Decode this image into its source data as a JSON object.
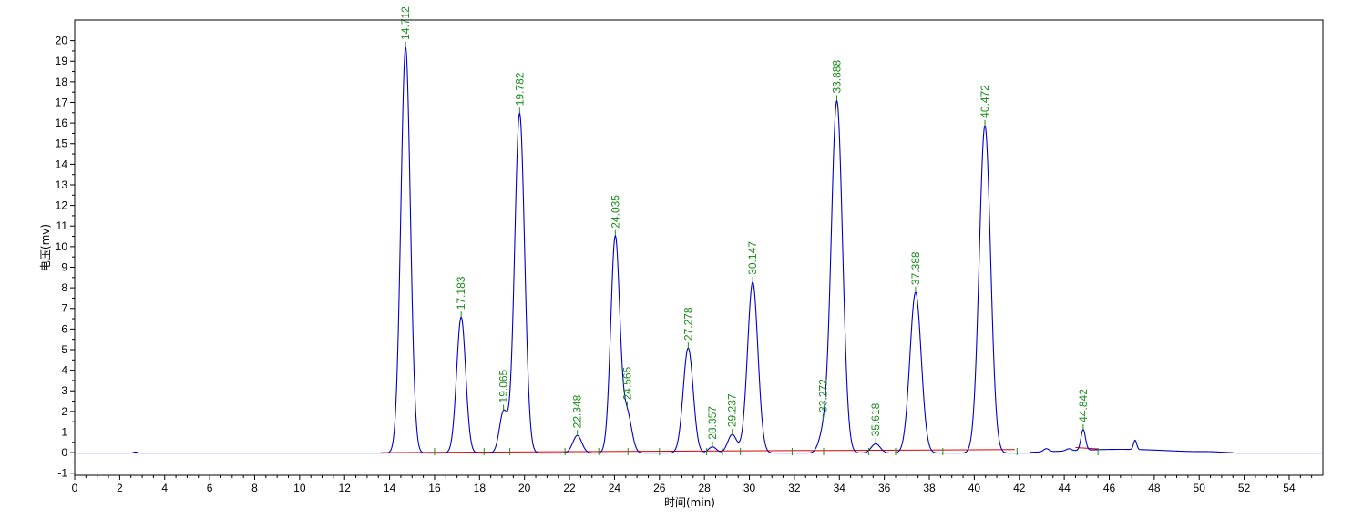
{
  "chart_data": {
    "type": "line",
    "title": "",
    "xlabel": "时间(min)",
    "ylabel": "电压(mv)",
    "xlim": [
      0,
      55.5
    ],
    "ylim": [
      -1.1,
      21.0
    ],
    "x_ticks": [
      0,
      2,
      4,
      6,
      8,
      10,
      12,
      14,
      16,
      18,
      20,
      22,
      24,
      26,
      28,
      30,
      32,
      34,
      36,
      38,
      40,
      42,
      44,
      46,
      48,
      50,
      52,
      54
    ],
    "y_ticks": [
      -1,
      0,
      1,
      2,
      3,
      4,
      5,
      6,
      7,
      8,
      9,
      10,
      11,
      12,
      13,
      14,
      15,
      16,
      17,
      18,
      19,
      20
    ],
    "grid": false,
    "colors": {
      "signal": "#0000c8",
      "baseline": "#e00000",
      "labels": "#1a8c1a",
      "markers": "#1a8c1a"
    },
    "peaks": [
      {
        "label": "14.712",
        "rt": 14.712,
        "height": 19.7,
        "width": 0.21
      },
      {
        "label": "17.183",
        "rt": 17.183,
        "height": 6.6,
        "width": 0.2
      },
      {
        "label": "19.065",
        "rt": 19.065,
        "height": 2.0,
        "width": 0.18
      },
      {
        "label": "19.782",
        "rt": 19.782,
        "height": 16.5,
        "width": 0.22
      },
      {
        "label": "22.348",
        "rt": 22.348,
        "height": 0.85,
        "width": 0.2
      },
      {
        "label": "24.035",
        "rt": 24.035,
        "height": 10.5,
        "width": 0.2
      },
      {
        "label": "24.565",
        "rt": 24.565,
        "height": 1.9,
        "width": 0.2
      },
      {
        "label": "27.278",
        "rt": 27.278,
        "height": 5.1,
        "width": 0.22
      },
      {
        "label": "28.357",
        "rt": 28.357,
        "height": 0.3,
        "width": 0.18
      },
      {
        "label": "29.237",
        "rt": 29.237,
        "height": 0.9,
        "width": 0.2
      },
      {
        "label": "30.147",
        "rt": 30.147,
        "height": 8.3,
        "width": 0.23
      },
      {
        "label": "33.272",
        "rt": 33.272,
        "height": 0.8,
        "width": 0.2
      },
      {
        "label": "33.888",
        "rt": 33.888,
        "height": 17.1,
        "width": 0.25
      },
      {
        "label": "35.618",
        "rt": 35.618,
        "height": 0.45,
        "width": 0.2
      },
      {
        "label": "37.388",
        "rt": 37.388,
        "height": 7.8,
        "width": 0.25
      },
      {
        "label": "40.472",
        "rt": 40.472,
        "height": 15.9,
        "width": 0.25
      },
      {
        "label": "44.842",
        "rt": 44.842,
        "height": 1.0,
        "width": 0.1
      }
    ],
    "minor_peaks": [
      {
        "rt": 43.2,
        "height": 0.15,
        "width": 0.12
      },
      {
        "rt": 44.2,
        "height": 0.1,
        "width": 0.12
      },
      {
        "rt": 47.15,
        "height": 0.45,
        "width": 0.07
      },
      {
        "rt": 50.5,
        "height": 0.03,
        "width": 0.5
      }
    ]
  }
}
